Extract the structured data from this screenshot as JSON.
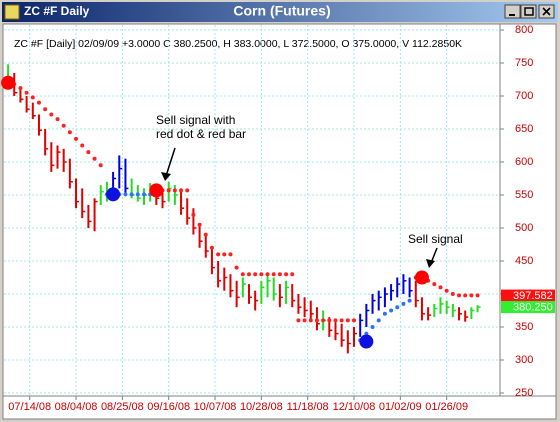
{
  "window": {
    "name": "ZC #F Daily"
  },
  "chart_data": {
    "type": "bar-chart",
    "title": "Corn (Futures)",
    "subtitle": "ZC #F [Daily] 02/09/09 +3.0000 C 380.2500, H 383.0000, L 372.5000, O 375.0000, V 112.2850K",
    "x": [
      0,
      2,
      4,
      6,
      8,
      10,
      12,
      14,
      16,
      18,
      20,
      22,
      24,
      26,
      28,
      30,
      32,
      34,
      36,
      38,
      40,
      42,
      44,
      46,
      48,
      50,
      52,
      54,
      56,
      58,
      60,
      62,
      64,
      66,
      68,
      70,
      72,
      74,
      76,
      78,
      80,
      82,
      84,
      86,
      88,
      90,
      92,
      94,
      96,
      98,
      100,
      102,
      104,
      106,
      108,
      110,
      112,
      114,
      116,
      118,
      120,
      122,
      124,
      126,
      128,
      130,
      132,
      134,
      136,
      138,
      140,
      142,
      144,
      146,
      148,
      150,
      152
    ],
    "high": [
      748,
      735,
      712,
      700,
      690,
      672,
      650,
      630,
      625,
      620,
      605,
      575,
      560,
      535,
      545,
      565,
      570,
      585,
      610,
      605,
      575,
      565,
      560,
      568,
      565,
      560,
      570,
      565,
      560,
      545,
      530,
      505,
      490,
      470,
      450,
      440,
      430,
      420,
      425,
      415,
      405,
      420,
      430,
      425,
      415,
      420,
      415,
      400,
      395,
      390,
      380,
      375,
      365,
      360,
      355,
      345,
      350,
      370,
      385,
      400,
      405,
      410,
      415,
      425,
      430,
      425,
      420,
      395,
      380,
      385,
      395,
      390,
      385,
      380,
      375,
      380,
      383
    ],
    "low": [
      712,
      700,
      690,
      675,
      665,
      640,
      610,
      585,
      590,
      585,
      560,
      530,
      515,
      500,
      495,
      535,
      540,
      545,
      560,
      550,
      545,
      540,
      535,
      540,
      535,
      530,
      540,
      535,
      520,
      505,
      490,
      470,
      455,
      430,
      410,
      405,
      395,
      380,
      395,
      385,
      375,
      385,
      395,
      390,
      380,
      385,
      380,
      370,
      365,
      360,
      345,
      345,
      335,
      330,
      320,
      310,
      320,
      335,
      350,
      370,
      375,
      380,
      390,
      395,
      400,
      395,
      380,
      360,
      360,
      365,
      370,
      370,
      365,
      360,
      358,
      362,
      372.5
    ],
    "close": [
      725,
      705,
      695,
      680,
      670,
      648,
      620,
      595,
      615,
      600,
      570,
      540,
      525,
      510,
      540,
      555,
      550,
      575,
      590,
      560,
      550,
      545,
      550,
      555,
      545,
      540,
      560,
      550,
      530,
      515,
      500,
      480,
      465,
      440,
      420,
      425,
      405,
      395,
      415,
      395,
      390,
      410,
      420,
      400,
      395,
      410,
      390,
      380,
      375,
      370,
      355,
      360,
      345,
      340,
      330,
      325,
      340,
      360,
      375,
      390,
      395,
      400,
      405,
      415,
      420,
      405,
      390,
      370,
      368,
      378,
      385,
      380,
      375,
      370,
      365,
      375,
      380.25
    ],
    "bar_colors": [
      "#22dd22",
      "#e00000",
      "#e00000",
      "#e00000",
      "#e00000",
      "#e00000",
      "#e00000",
      "#e00000",
      "#e00000",
      "#e00000",
      "#e00000",
      "#e00000",
      "#e00000",
      "#e00000",
      "#e00000",
      "#22dd22",
      "#22dd22",
      "#0000e0",
      "#0000e0",
      "#0000e0",
      "#22dd22",
      "#22dd22",
      "#22dd22",
      "#22dd22",
      "#e00000",
      "#e00000",
      "#22dd22",
      "#22dd22",
      "#e00000",
      "#e00000",
      "#e00000",
      "#e00000",
      "#e00000",
      "#e00000",
      "#e00000",
      "#e00000",
      "#e00000",
      "#e00000",
      "#22dd22",
      "#e00000",
      "#e00000",
      "#22dd22",
      "#22dd22",
      "#22dd22",
      "#e00000",
      "#22dd22",
      "#e00000",
      "#e00000",
      "#e00000",
      "#e00000",
      "#e00000",
      "#22dd22",
      "#e00000",
      "#e00000",
      "#e00000",
      "#e00000",
      "#e00000",
      "#0000e0",
      "#0000e0",
      "#0000e0",
      "#0000e0",
      "#0000e0",
      "#0000e0",
      "#0000e0",
      "#0000e0",
      "#0000e0",
      "#e00000",
      "#e00000",
      "#e00000",
      "#22dd22",
      "#22dd22",
      "#22dd22",
      "#22dd22",
      "#e00000",
      "#e00000",
      "#22dd22",
      "#22dd22"
    ],
    "stops": [
      {
        "color": "#ff2020",
        "values": [
          720,
          718,
          712,
          705,
          698,
          690,
          680,
          672,
          665,
          655,
          645,
          635,
          625,
          615,
          605,
          595,
          null,
          null,
          null,
          null,
          null,
          null,
          null,
          null,
          557,
          557,
          557,
          557,
          557,
          557,
          520,
          505,
          490,
          470,
          460,
          460,
          460,
          440,
          430,
          430,
          430,
          430,
          430,
          430,
          430,
          430,
          430,
          360,
          360,
          360,
          360,
          360,
          360,
          360,
          360,
          360,
          360,
          null,
          null,
          null,
          null,
          null,
          null,
          null,
          null,
          null,
          425,
          425,
          420,
          415,
          410,
          405,
          400,
          398,
          398,
          398,
          398
        ]
      },
      {
        "color": "#3070ff",
        "values": [
          null,
          null,
          null,
          null,
          null,
          null,
          null,
          null,
          null,
          null,
          null,
          null,
          null,
          null,
          null,
          null,
          551,
          551,
          551,
          551,
          551,
          551,
          551,
          551,
          null,
          null,
          null,
          null,
          null,
          null,
          null,
          null,
          null,
          null,
          null,
          null,
          null,
          null,
          null,
          null,
          null,
          null,
          null,
          null,
          null,
          null,
          null,
          null,
          null,
          null,
          null,
          null,
          null,
          null,
          null,
          null,
          null,
          330,
          340,
          350,
          360,
          370,
          375,
          380,
          385,
          390,
          null,
          null,
          null,
          null,
          null,
          null,
          null,
          null,
          null,
          null,
          null
        ]
      }
    ],
    "signals": {
      "x": [
        0,
        34,
        48,
        116,
        134
      ],
      "values": [
        720,
        551,
        557,
        328,
        425
      ],
      "colors": [
        "#ff0000",
        "#1010e0",
        "#ff0000",
        "#1010e0",
        "#ff0000"
      ]
    },
    "price_labels": [
      {
        "value": 397.582,
        "label": "397.582",
        "color": "#ff1010"
      },
      {
        "value": 380.25,
        "label": "380.250",
        "color": "#33ee33"
      }
    ],
    "annotations": [
      {
        "lines": [
          "Sell signal with",
          "red dot & red bar"
        ]
      },
      {
        "lines": [
          "Sell signal"
        ]
      }
    ],
    "xlim": [
      -1,
      157
    ],
    "xticks": [
      {
        "value": 7,
        "label": "07/14/08"
      },
      {
        "value": 22,
        "label": "08/04/08"
      },
      {
        "value": 37,
        "label": "08/25/08"
      },
      {
        "value": 52,
        "label": "09/16/08"
      },
      {
        "value": 67,
        "label": "10/07/08"
      },
      {
        "value": 82,
        "label": "10/28/08"
      },
      {
        "value": 97,
        "label": "11/18/08"
      },
      {
        "value": 112,
        "label": "12/10/08"
      },
      {
        "value": 127,
        "label": "01/02/09"
      },
      {
        "value": 142,
        "label": "01/26/09"
      }
    ],
    "ylim": [
      250,
      800
    ],
    "yticks": [
      250,
      300,
      350,
      400,
      450,
      500,
      550,
      600,
      650,
      700,
      750,
      800
    ],
    "grid": true
  }
}
